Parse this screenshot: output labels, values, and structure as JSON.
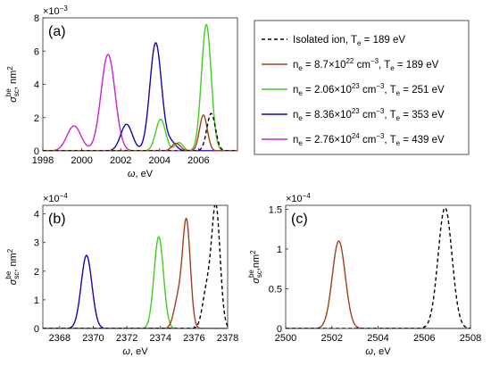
{
  "chart_data": [
    {
      "type": "line",
      "panel_label": "(a)",
      "xlabel": "ω, eV",
      "ylabel": {
        "main": "σ",
        "sup": "be",
        "sub": "sc",
        "unit": ", nm",
        "unit_sup": "2"
      },
      "multiplier": {
        "base": "×10",
        "exp": "−3"
      },
      "xlim": [
        1998,
        2008
      ],
      "ylim": [
        0,
        8
      ],
      "xticks": [
        1998,
        2000,
        2002,
        2004,
        2006
      ],
      "yticks": [
        0,
        2,
        4,
        6,
        8
      ],
      "series": [
        {
          "name": "Isolated ion, T_e = 189 eV",
          "color": "#000000",
          "dash": true,
          "peaks": [
            [
              2006.65,
              2.25,
              0.22
            ]
          ]
        },
        {
          "name": "n_e = 8.7×10^22 cm^-3, T_e = 189 eV",
          "color": "#a0401a",
          "peaks": [
            [
              2006.25,
              2.15,
              0.2
            ],
            [
              2004.85,
              0.45,
              0.22
            ]
          ]
        },
        {
          "name": "n_e = 2.06×10^23 cm^-3, T_e = 251 eV",
          "color": "#44cc22",
          "peaks": [
            [
              2006.4,
              7.6,
              0.25
            ],
            [
              2004.05,
              1.9,
              0.25
            ],
            [
              2005.0,
              0.5,
              0.2
            ]
          ]
        },
        {
          "name": "n_e = 8.36×10^23 cm^-3, T_e = 353 eV",
          "color": "#0a0aa8",
          "peaks": [
            [
              2003.8,
              6.5,
              0.3
            ],
            [
              2002.3,
              1.6,
              0.3
            ],
            [
              2004.6,
              0.5,
              0.25
            ]
          ]
        },
        {
          "name": "n_e = 2.76×10^24 cm^-3, T_e = 439 eV",
          "color": "#cc22cc",
          "peaks": [
            [
              2001.35,
              5.8,
              0.36
            ],
            [
              1999.6,
              1.5,
              0.36
            ]
          ]
        }
      ]
    },
    {
      "type": "line",
      "panel_label": "(b)",
      "xlabel": "ω, eV",
      "ylabel": {
        "main": "σ",
        "sup": "be",
        "sub": "sc",
        "unit": ", nm",
        "unit_sup": "2"
      },
      "multiplier": {
        "base": "×10",
        "exp": "−4"
      },
      "xlim": [
        2367,
        2378
      ],
      "ylim": [
        0,
        4.3
      ],
      "xticks": [
        2368,
        2370,
        2372,
        2374,
        2376,
        2378
      ],
      "yticks": [
        0,
        1,
        2,
        3,
        4
      ],
      "series": [
        {
          "color": "#000000",
          "dash": true,
          "peaks": [
            [
              2377.3,
              4.25,
              0.25
            ],
            [
              2376.75,
              1.3,
              0.25
            ]
          ]
        },
        {
          "color": "#a0401a",
          "peaks": [
            [
              2375.55,
              3.7,
              0.23
            ],
            [
              2375.05,
              1.0,
              0.25
            ]
          ]
        },
        {
          "color": "#44cc22",
          "peaks": [
            [
              2373.9,
              3.2,
              0.28
            ]
          ]
        },
        {
          "color": "#0a0aa8",
          "peaks": [
            [
              2369.6,
              2.55,
              0.32
            ]
          ]
        },
        {
          "color": "#cc22cc",
          "peaks": []
        }
      ]
    },
    {
      "type": "line",
      "panel_label": "(c)",
      "xlabel": "ω, eV",
      "ylabel": {
        "main": "σ",
        "sup": "be",
        "sub": "sc",
        "unit": ",nm",
        "unit_sup": "2"
      },
      "multiplier": {
        "base": "×10",
        "exp": "−4"
      },
      "xlim": [
        2500,
        2508
      ],
      "ylim": [
        0,
        1.55
      ],
      "xticks": [
        2500,
        2502,
        2504,
        2506,
        2508
      ],
      "yticks": [
        0,
        0.5,
        1,
        1.5
      ],
      "series": [
        {
          "color": "#000000",
          "dash": true,
          "peaks": [
            [
              2506.9,
              1.52,
              0.3
            ]
          ]
        },
        {
          "color": "#a0401a",
          "peaks": [
            [
              2502.3,
              1.1,
              0.28
            ]
          ]
        }
      ]
    }
  ],
  "legend": {
    "items": [
      {
        "prefix": "Isolated ion, T",
        "tsub": "e",
        "tail": " = 189 eV"
      },
      {
        "prefix": "n",
        "nsub": "e",
        "mid": " = 8.7×10",
        "exp": "22",
        "unit": " cm",
        "unitexp": "−3",
        "tpre": ", T",
        "tsub": "e",
        "tail": " = 189 eV"
      },
      {
        "prefix": "n",
        "nsub": "e",
        "mid": " = 2.06×10",
        "exp": "23",
        "unit": " cm",
        "unitexp": "−3",
        "tpre": ", T",
        "tsub": "e",
        "tail": " = 251 eV"
      },
      {
        "prefix": "n",
        "nsub": "e",
        "mid": " = 8.36×10",
        "exp": "23",
        "unit": " cm",
        "unitexp": "−3",
        "tpre": ", T",
        "tsub": "e",
        "tail": " = 353 eV"
      },
      {
        "prefix": "n",
        "nsub": "e",
        "mid": " = 2.76×10",
        "exp": "24",
        "unit": " cm",
        "unitexp": "−3",
        "tpre": ", T",
        "tsub": "e",
        "tail": " = 439 eV"
      }
    ]
  }
}
